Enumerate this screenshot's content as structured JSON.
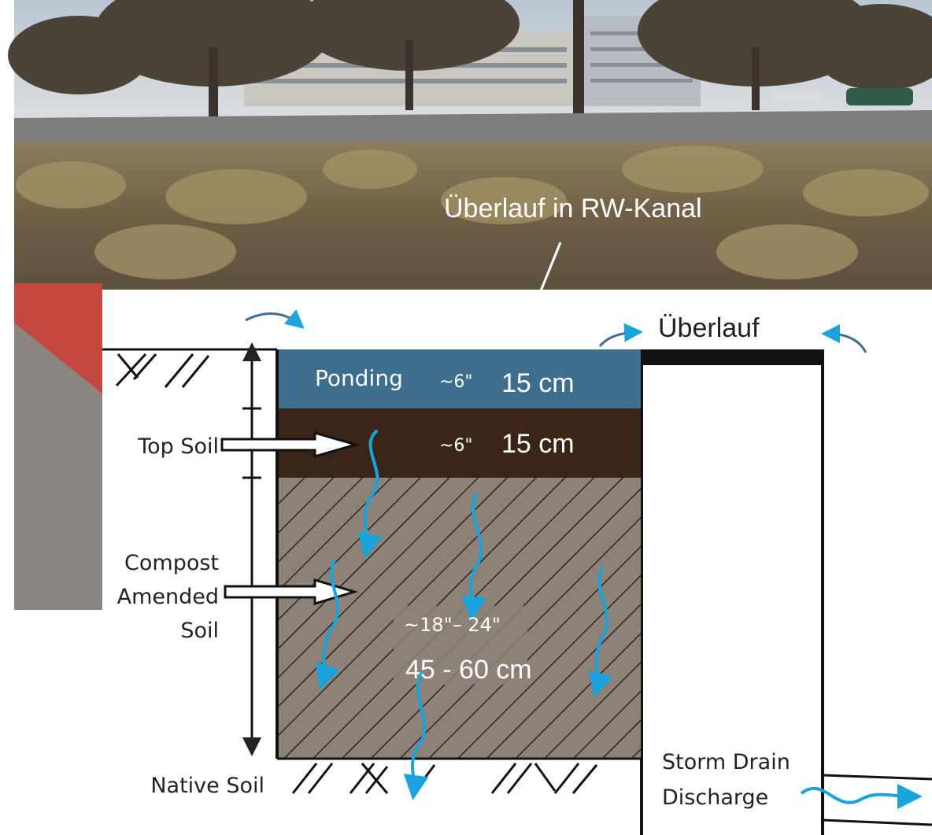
{
  "photo_caption": "Überlauf in RW-Kanal",
  "overflow_label": "Überlauf",
  "layers": {
    "ponding": {
      "name": "Ponding",
      "depth_in": "~6\"",
      "depth_cm": "15 cm"
    },
    "top_soil": {
      "depth_in": "~6\"",
      "depth_cm": "15 cm"
    },
    "compost": {
      "depth_in": "~18\"– 24\"",
      "depth_cm": "45 - 60 cm"
    }
  },
  "side_labels": {
    "top_soil": "Top Soil",
    "compost_1": "Compost",
    "compost_2": "Amended",
    "compost_3": "Soil",
    "native_soil": "Native Soil"
  },
  "drain_label": {
    "line1": "Storm Drain",
    "line2": "Discharge"
  },
  "colors": {
    "ponding": "#3d6e8d",
    "top_soil": "#3a2618",
    "compost": "#8c8278",
    "water_arrow": "#1aa3dc"
  }
}
